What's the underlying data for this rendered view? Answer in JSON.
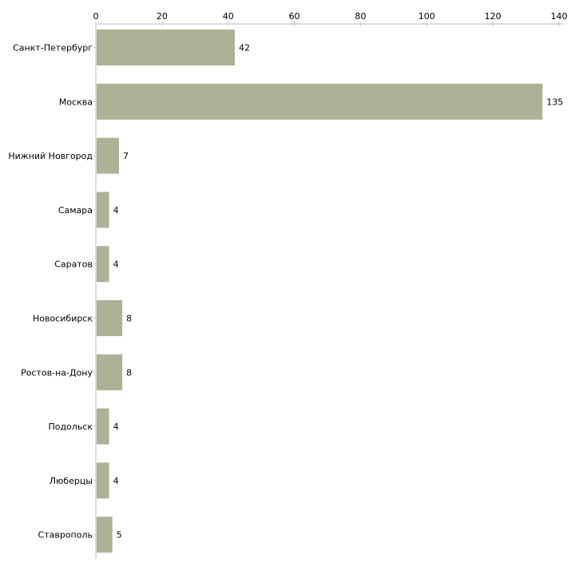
{
  "chart_data": {
    "type": "bar",
    "orientation": "horizontal",
    "title": "",
    "xlabel": "",
    "ylabel": "",
    "xlim": [
      0,
      140
    ],
    "xticks": [
      0,
      20,
      40,
      60,
      80,
      100,
      120,
      140
    ],
    "axis_position": "top",
    "grid": false,
    "bar_color": "#adb296",
    "categories": [
      "Санкт-Петербург",
      "Москва",
      "Нижний Новгород",
      "Самара",
      "Саратов",
      "Новосибирск",
      "Ростов-на-Дону",
      "Подольск",
      "Люберцы",
      "Ставрополь"
    ],
    "values": [
      42,
      135,
      7,
      4,
      4,
      8,
      8,
      4,
      4,
      5
    ]
  }
}
